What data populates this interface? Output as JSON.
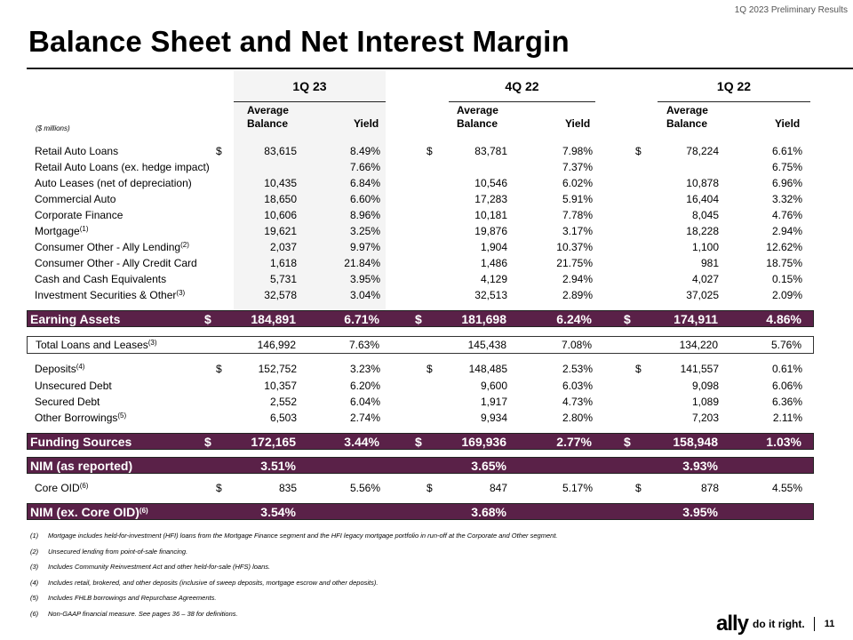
{
  "header": {
    "doc_label": "1Q 2023 Preliminary Results"
  },
  "title": "Balance Sheet and Net Interest Margin",
  "units_note": "($ millions)",
  "quarters": [
    "1Q 23",
    "4Q 22",
    "1Q 22"
  ],
  "col_headers": {
    "avg_balance_1": "Average",
    "avg_balance_2": "Balance",
    "yield": "Yield"
  },
  "rows": [
    {
      "label": "Retail Auto Loans",
      "sup": "",
      "q": [
        {
          "dollar": "$",
          "bal": "83,615",
          "yld": "8.49%"
        },
        {
          "dollar": "$",
          "bal": "83,781",
          "yld": "7.98%"
        },
        {
          "dollar": "$",
          "bal": "78,224",
          "yld": "6.61%"
        }
      ]
    },
    {
      "label": "Retail Auto Loans (ex. hedge impact)",
      "sup": "",
      "q": [
        {
          "dollar": "",
          "bal": "",
          "yld": "7.66%"
        },
        {
          "dollar": "",
          "bal": "",
          "yld": "7.37%"
        },
        {
          "dollar": "",
          "bal": "",
          "yld": "6.75%"
        }
      ]
    },
    {
      "label": "Auto Leases (net of depreciation)",
      "sup": "",
      "q": [
        {
          "dollar": "",
          "bal": "10,435",
          "yld": "6.84%"
        },
        {
          "dollar": "",
          "bal": "10,546",
          "yld": "6.02%"
        },
        {
          "dollar": "",
          "bal": "10,878",
          "yld": "6.96%"
        }
      ]
    },
    {
      "label": "Commercial Auto",
      "sup": "",
      "q": [
        {
          "dollar": "",
          "bal": "18,650",
          "yld": "6.60%"
        },
        {
          "dollar": "",
          "bal": "17,283",
          "yld": "5.91%"
        },
        {
          "dollar": "",
          "bal": "16,404",
          "yld": "3.32%"
        }
      ]
    },
    {
      "label": "Corporate Finance",
      "sup": "",
      "q": [
        {
          "dollar": "",
          "bal": "10,606",
          "yld": "8.96%"
        },
        {
          "dollar": "",
          "bal": "10,181",
          "yld": "7.78%"
        },
        {
          "dollar": "",
          "bal": "8,045",
          "yld": "4.76%"
        }
      ]
    },
    {
      "label": "Mortgage",
      "sup": "(1)",
      "q": [
        {
          "dollar": "",
          "bal": "19,621",
          "yld": "3.25%"
        },
        {
          "dollar": "",
          "bal": "19,876",
          "yld": "3.17%"
        },
        {
          "dollar": "",
          "bal": "18,228",
          "yld": "2.94%"
        }
      ]
    },
    {
      "label": "Consumer Other - Ally Lending",
      "sup": "(2)",
      "q": [
        {
          "dollar": "",
          "bal": "2,037",
          "yld": "9.97%"
        },
        {
          "dollar": "",
          "bal": "1,904",
          "yld": "10.37%"
        },
        {
          "dollar": "",
          "bal": "1,100",
          "yld": "12.62%"
        }
      ]
    },
    {
      "label": "Consumer Other - Ally Credit Card",
      "sup": "",
      "q": [
        {
          "dollar": "",
          "bal": "1,618",
          "yld": "21.84%"
        },
        {
          "dollar": "",
          "bal": "1,486",
          "yld": "21.75%"
        },
        {
          "dollar": "",
          "bal": "981",
          "yld": "18.75%"
        }
      ]
    },
    {
      "label": "Cash and Cash Equivalents",
      "sup": "",
      "q": [
        {
          "dollar": "",
          "bal": "5,731",
          "yld": "3.95%"
        },
        {
          "dollar": "",
          "bal": "4,129",
          "yld": "2.94%"
        },
        {
          "dollar": "",
          "bal": "4,027",
          "yld": "0.15%"
        }
      ]
    },
    {
      "label": "Investment Securities & Other",
      "sup": "(3)",
      "q": [
        {
          "dollar": "",
          "bal": "32,578",
          "yld": "3.04%"
        },
        {
          "dollar": "",
          "bal": "32,513",
          "yld": "2.89%"
        },
        {
          "dollar": "",
          "bal": "37,025",
          "yld": "2.09%"
        }
      ]
    }
  ],
  "earning_assets": {
    "label": "Earning Assets",
    "q": [
      {
        "dollar": "$",
        "bal": "184,891",
        "yld": "6.71%"
      },
      {
        "dollar": "$",
        "bal": "181,698",
        "yld": "6.24%"
      },
      {
        "dollar": "$",
        "bal": "174,911",
        "yld": "4.86%"
      }
    ]
  },
  "total_loans": {
    "label": "Total Loans and Leases",
    "sup": "(3)",
    "q": [
      {
        "dollar": "",
        "bal": "146,992",
        "yld": "7.63%"
      },
      {
        "dollar": "",
        "bal": "145,438",
        "yld": "7.08%"
      },
      {
        "dollar": "",
        "bal": "134,220",
        "yld": "5.76%"
      }
    ]
  },
  "funding_rows": [
    {
      "label": "Deposits",
      "sup": "(4)",
      "q": [
        {
          "dollar": "$",
          "bal": "152,752",
          "yld": "3.23%"
        },
        {
          "dollar": "$",
          "bal": "148,485",
          "yld": "2.53%"
        },
        {
          "dollar": "$",
          "bal": "141,557",
          "yld": "0.61%"
        }
      ]
    },
    {
      "label": "Unsecured Debt",
      "sup": "",
      "q": [
        {
          "dollar": "",
          "bal": "10,357",
          "yld": "6.20%"
        },
        {
          "dollar": "",
          "bal": "9,600",
          "yld": "6.03%"
        },
        {
          "dollar": "",
          "bal": "9,098",
          "yld": "6.06%"
        }
      ]
    },
    {
      "label": "Secured Debt",
      "sup": "",
      "q": [
        {
          "dollar": "",
          "bal": "2,552",
          "yld": "6.04%"
        },
        {
          "dollar": "",
          "bal": "1,917",
          "yld": "4.73%"
        },
        {
          "dollar": "",
          "bal": "1,089",
          "yld": "6.36%"
        }
      ]
    },
    {
      "label": "Other Borrowings",
      "sup": "(5)",
      "q": [
        {
          "dollar": "",
          "bal": "6,503",
          "yld": "2.74%"
        },
        {
          "dollar": "",
          "bal": "9,934",
          "yld": "2.80%"
        },
        {
          "dollar": "",
          "bal": "7,203",
          "yld": "2.11%"
        }
      ]
    }
  ],
  "funding_sources": {
    "label": "Funding Sources",
    "q": [
      {
        "dollar": "$",
        "bal": "172,165",
        "yld": "3.44%"
      },
      {
        "dollar": "$",
        "bal": "169,936",
        "yld": "2.77%"
      },
      {
        "dollar": "$",
        "bal": "158,948",
        "yld": "1.03%"
      }
    ]
  },
  "nim_reported": {
    "label": "NIM (as reported)",
    "q": [
      "3.51%",
      "3.65%",
      "3.93%"
    ]
  },
  "core_oid": {
    "label": "Core OID",
    "sup": "(6)",
    "q": [
      {
        "dollar": "$",
        "bal": "835",
        "yld": "5.56%"
      },
      {
        "dollar": "$",
        "bal": "847",
        "yld": "5.17%"
      },
      {
        "dollar": "$",
        "bal": "878",
        "yld": "4.55%"
      }
    ]
  },
  "nim_ex_oid": {
    "label": "NIM (ex. Core OID)",
    "sup": "(6)",
    "q": [
      "3.54%",
      "3.68%",
      "3.95%"
    ]
  },
  "footnotes": [
    {
      "num": "(1)",
      "text": "Mortgage includes held-for-investment (HFI) loans from the Mortgage Finance segment and the HFI legacy mortgage portfolio in run-off at the Corporate and Other segment."
    },
    {
      "num": "(2)",
      "text": "Unsecured lending from point-of-sale financing."
    },
    {
      "num": "(3)",
      "text": "Includes Community Reinvestment Act and other held-for-sale (HFS) loans."
    },
    {
      "num": "(4)",
      "text": "Includes retail, brokered, and other deposits (inclusive of sweep deposits, mortgage escrow and other deposits)."
    },
    {
      "num": "(5)",
      "text": "Includes FHLB borrowings and Repurchase Agreements."
    },
    {
      "num": "(6)",
      "text": "Non-GAAP financial measure. See pages 36 – 38  for definitions."
    }
  ],
  "brand": {
    "logo": "ally",
    "tagline": "do it right.",
    "page_number": "11"
  }
}
